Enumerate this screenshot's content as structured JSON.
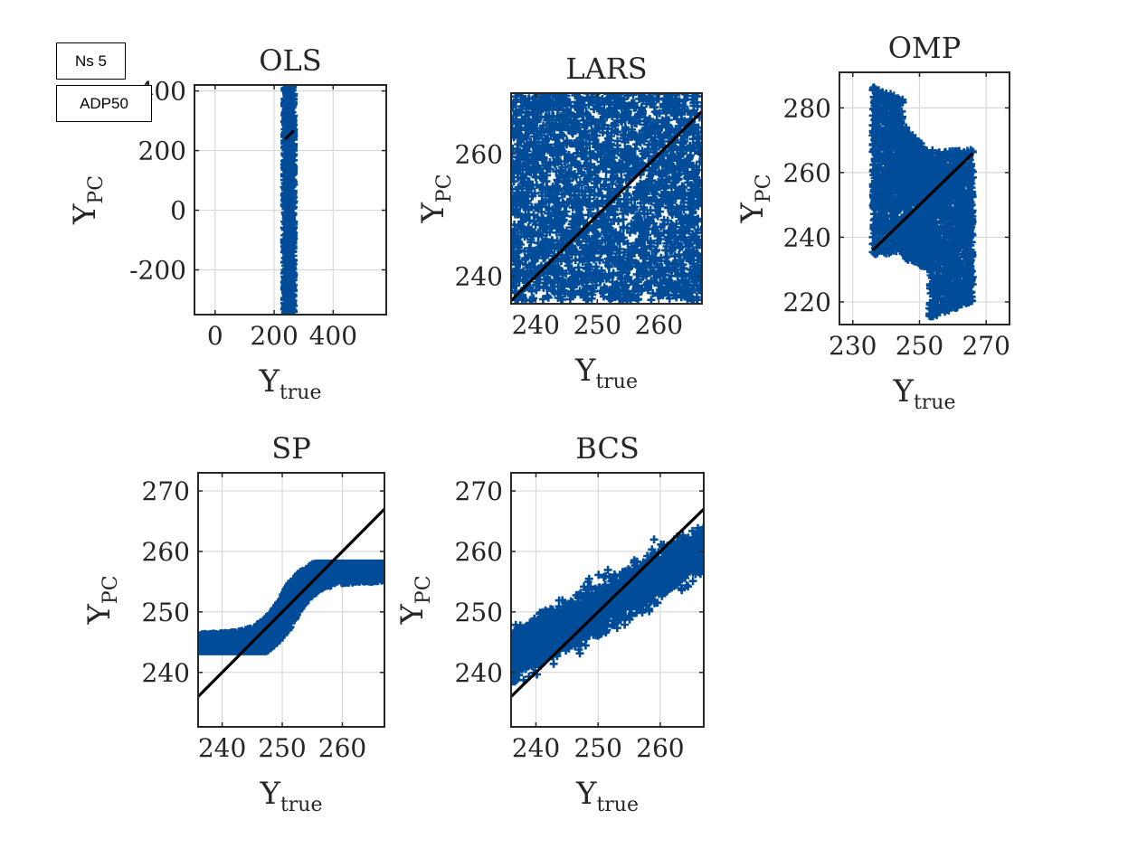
{
  "annotations": {
    "ns_label": "Ns 5",
    "method_label": "ADP50"
  },
  "colors": {
    "points": "#004C99",
    "fit_line": "#000000",
    "axis": "#262626",
    "grid": "#d9d9d9"
  },
  "chart_data": [
    {
      "type": "scatter",
      "title": "OLS",
      "xlabel": "Y",
      "xlabel_sub": "true",
      "ylabel": "Y",
      "ylabel_sub": "PC",
      "xlim": [
        -70,
        580
      ],
      "ylim": [
        -350,
        420
      ],
      "xticks": [
        0,
        200,
        400
      ],
      "yticks": [
        -200,
        0,
        200,
        400
      ],
      "cloud": {
        "x_range": [
          234,
          267
        ],
        "y_range": [
          -345,
          415
        ],
        "shape": "column"
      },
      "fit_line": [
        [
          236,
          237
        ],
        [
          267,
          267
        ]
      ],
      "grid": true
    },
    {
      "type": "scatter",
      "title": "LARS",
      "xlabel": "Y",
      "xlabel_sub": "true",
      "ylabel": "Y",
      "ylabel_sub": "PC",
      "xlim": [
        236,
        267
      ],
      "ylim": [
        235.5,
        270
      ],
      "xticks": [
        240,
        250,
        260
      ],
      "yticks": [
        240,
        260
      ],
      "cloud": {
        "x_range": [
          236,
          267
        ],
        "y_range": [
          236,
          270
        ],
        "shape": "box"
      },
      "fit_line": [
        [
          236,
          236
        ],
        [
          267,
          267
        ]
      ],
      "grid": true
    },
    {
      "type": "scatter",
      "title": "OMP",
      "xlabel": "Y",
      "xlabel_sub": "true",
      "ylabel": "Y",
      "ylabel_sub": "PC",
      "xlim": [
        226,
        277
      ],
      "ylim": [
        213,
        291
      ],
      "xticks": [
        230,
        250,
        270
      ],
      "yticks": [
        220,
        240,
        260,
        280
      ],
      "cloud": {
        "x_range": [
          236,
          266
        ],
        "y_range": [
          213,
          291
        ],
        "shape": "omp"
      },
      "fit_line": [
        [
          236,
          236
        ],
        [
          266,
          266
        ]
      ],
      "grid": true
    },
    {
      "type": "scatter",
      "title": "SP",
      "xlabel": "Y",
      "xlabel_sub": "true",
      "ylabel": "Y",
      "ylabel_sub": "PC",
      "xlim": [
        236,
        267
      ],
      "ylim": [
        231,
        273
      ],
      "xticks": [
        240,
        250,
        260
      ],
      "yticks": [
        240,
        250,
        260,
        270
      ],
      "cloud": {
        "x_range": [
          236,
          267
        ],
        "y_range": [
          243.5,
          258
        ],
        "shape": "sigmoid"
      },
      "fit_line": [
        [
          236,
          236
        ],
        [
          267,
          267
        ]
      ],
      "grid": true
    },
    {
      "type": "scatter",
      "title": "BCS",
      "xlabel": "Y",
      "xlabel_sub": "true",
      "ylabel": "Y",
      "ylabel_sub": "PC",
      "xlim": [
        236,
        267
      ],
      "ylim": [
        231,
        273
      ],
      "xticks": [
        240,
        250,
        260
      ],
      "yticks": [
        240,
        250,
        260,
        270
      ],
      "cloud": {
        "x_range": [
          236,
          267
        ],
        "y_range": [
          238.5,
          264
        ],
        "shape": "band"
      },
      "fit_line": [
        [
          236,
          236
        ],
        [
          267,
          267
        ]
      ],
      "grid": true
    }
  ]
}
